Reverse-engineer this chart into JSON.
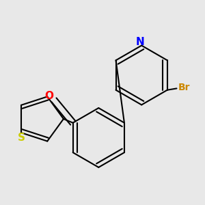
{
  "background_color": "#e8e8e8",
  "bond_color": "#000000",
  "figsize": [
    3.0,
    3.0
  ],
  "dpi": 100,
  "atoms": {
    "N_color": "#0000ff",
    "O_color": "#ff0000",
    "S_color": "#cccc00",
    "Br_color": "#cc8800",
    "Br_label": "Br",
    "N_label": "N",
    "O_label": "O",
    "S_label": "S"
  }
}
